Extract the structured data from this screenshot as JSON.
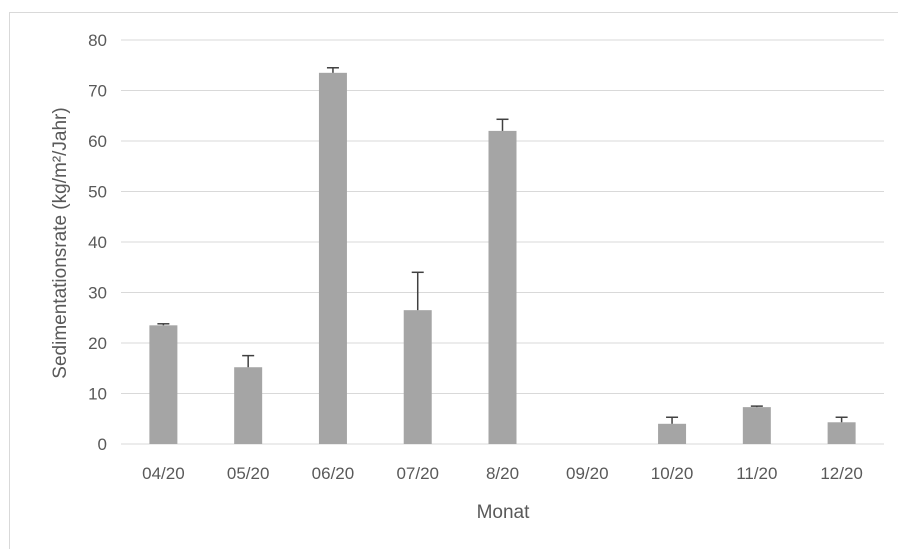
{
  "chart_data": {
    "type": "bar",
    "title": "",
    "xlabel": "Monat",
    "ylabel": "Sedimentationsrate (kg/m²/Jahr)",
    "categories": [
      "04/20",
      "05/20",
      "06/20",
      "07/20",
      "8/20",
      "09/20",
      "10/20",
      "11/20",
      "12/20"
    ],
    "values": [
      23.5,
      15.2,
      73.5,
      26.5,
      62.0,
      0,
      4.0,
      7.3,
      4.3
    ],
    "error_plus": [
      0.3,
      2.3,
      1.0,
      7.5,
      2.3,
      0,
      1.3,
      0.2,
      1.0
    ],
    "ylim": [
      0,
      80
    ],
    "yticks": [
      0,
      10,
      20,
      30,
      40,
      50,
      60,
      70,
      80
    ],
    "grid": true,
    "colors": {
      "bar": "#a5a5a5",
      "error_bar": "#404040",
      "grid": "#d9d9d9",
      "text": "#595959"
    }
  }
}
